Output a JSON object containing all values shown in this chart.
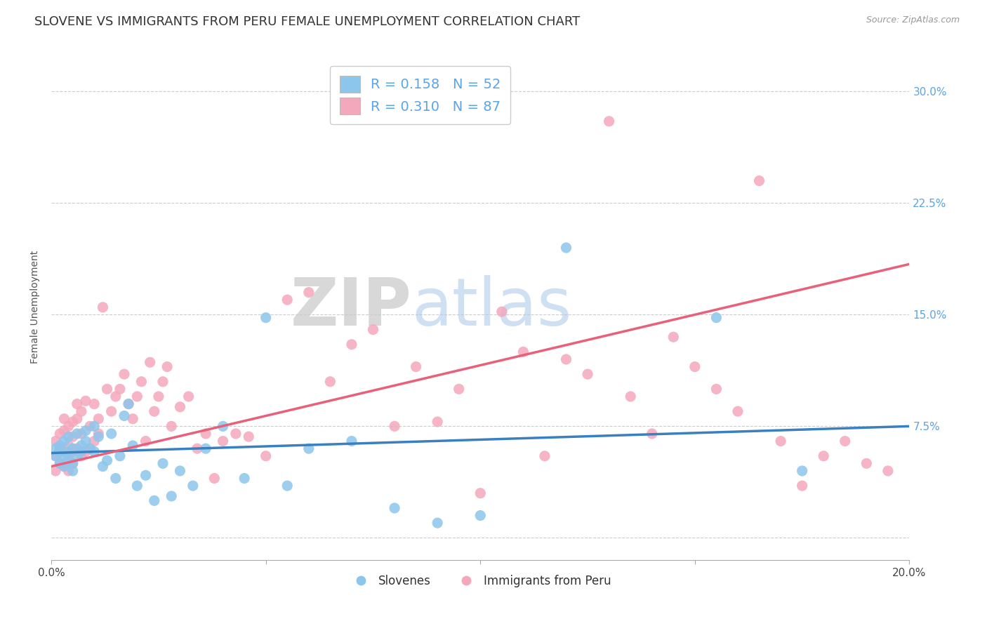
{
  "title": "SLOVENE VS IMMIGRANTS FROM PERU FEMALE UNEMPLOYMENT CORRELATION CHART",
  "source": "Source: ZipAtlas.com",
  "ylabel": "Female Unemployment",
  "yticks": [
    0.0,
    0.075,
    0.15,
    0.225,
    0.3
  ],
  "ytick_labels": [
    "",
    "7.5%",
    "15.0%",
    "22.5%",
    "30.0%"
  ],
  "xlim": [
    0.0,
    0.2
  ],
  "ylim": [
    -0.015,
    0.325
  ],
  "slovene_R": 0.158,
  "slovene_N": 52,
  "peru_R": 0.31,
  "peru_N": 87,
  "slovene_color": "#8DC6EC",
  "peru_color": "#F4A8BC",
  "slovene_line_color": "#3A80C0",
  "peru_line_color": "#E8607A",
  "watermark_zip": "ZIP",
  "watermark_atlas": "atlas",
  "background_color": "#FFFFFF",
  "grid_color": "#CCCCCC",
  "title_fontsize": 13,
  "axis_label_fontsize": 10,
  "tick_label_fontsize": 11,
  "legend_fontsize": 14,
  "slovene_x": [
    0.001,
    0.001,
    0.002,
    0.002,
    0.002,
    0.003,
    0.003,
    0.003,
    0.004,
    0.004,
    0.004,
    0.005,
    0.005,
    0.005,
    0.006,
    0.006,
    0.007,
    0.007,
    0.008,
    0.008,
    0.009,
    0.01,
    0.01,
    0.011,
    0.012,
    0.013,
    0.014,
    0.015,
    0.016,
    0.017,
    0.018,
    0.019,
    0.02,
    0.022,
    0.024,
    0.026,
    0.028,
    0.03,
    0.033,
    0.036,
    0.04,
    0.045,
    0.05,
    0.055,
    0.06,
    0.07,
    0.08,
    0.09,
    0.1,
    0.12,
    0.155,
    0.175
  ],
  "slovene_y": [
    0.06,
    0.055,
    0.058,
    0.062,
    0.05,
    0.048,
    0.055,
    0.065,
    0.052,
    0.058,
    0.068,
    0.045,
    0.06,
    0.05,
    0.07,
    0.055,
    0.062,
    0.058,
    0.065,
    0.072,
    0.06,
    0.058,
    0.075,
    0.068,
    0.048,
    0.052,
    0.07,
    0.04,
    0.055,
    0.082,
    0.09,
    0.062,
    0.035,
    0.042,
    0.025,
    0.05,
    0.028,
    0.045,
    0.035,
    0.06,
    0.075,
    0.04,
    0.148,
    0.035,
    0.06,
    0.065,
    0.02,
    0.01,
    0.015,
    0.195,
    0.148,
    0.045
  ],
  "peru_x": [
    0.001,
    0.001,
    0.001,
    0.002,
    0.002,
    0.002,
    0.003,
    0.003,
    0.003,
    0.003,
    0.004,
    0.004,
    0.004,
    0.004,
    0.005,
    0.005,
    0.005,
    0.005,
    0.006,
    0.006,
    0.006,
    0.007,
    0.007,
    0.007,
    0.008,
    0.008,
    0.009,
    0.009,
    0.01,
    0.01,
    0.011,
    0.011,
    0.012,
    0.013,
    0.014,
    0.015,
    0.016,
    0.017,
    0.018,
    0.019,
    0.02,
    0.021,
    0.022,
    0.023,
    0.024,
    0.025,
    0.026,
    0.027,
    0.028,
    0.03,
    0.032,
    0.034,
    0.036,
    0.038,
    0.04,
    0.043,
    0.046,
    0.05,
    0.055,
    0.06,
    0.065,
    0.07,
    0.075,
    0.08,
    0.085,
    0.09,
    0.095,
    0.1,
    0.105,
    0.11,
    0.115,
    0.12,
    0.125,
    0.13,
    0.135,
    0.14,
    0.145,
    0.15,
    0.155,
    0.16,
    0.165,
    0.17,
    0.175,
    0.18,
    0.185,
    0.19,
    0.195
  ],
  "peru_y": [
    0.055,
    0.065,
    0.045,
    0.06,
    0.07,
    0.05,
    0.058,
    0.072,
    0.048,
    0.08,
    0.055,
    0.062,
    0.075,
    0.045,
    0.058,
    0.068,
    0.078,
    0.05,
    0.06,
    0.08,
    0.09,
    0.055,
    0.07,
    0.085,
    0.058,
    0.092,
    0.06,
    0.075,
    0.065,
    0.09,
    0.07,
    0.08,
    0.155,
    0.1,
    0.085,
    0.095,
    0.1,
    0.11,
    0.09,
    0.08,
    0.095,
    0.105,
    0.065,
    0.118,
    0.085,
    0.095,
    0.105,
    0.115,
    0.075,
    0.088,
    0.095,
    0.06,
    0.07,
    0.04,
    0.065,
    0.07,
    0.068,
    0.055,
    0.16,
    0.165,
    0.105,
    0.13,
    0.14,
    0.075,
    0.115,
    0.078,
    0.1,
    0.03,
    0.152,
    0.125,
    0.055,
    0.12,
    0.11,
    0.28,
    0.095,
    0.07,
    0.135,
    0.115,
    0.1,
    0.085,
    0.24,
    0.065,
    0.035,
    0.055,
    0.065,
    0.05,
    0.045
  ],
  "slovene_line_x": [
    0.0,
    0.2
  ],
  "slovene_line_y_intercept": 0.057,
  "slovene_line_slope": 0.09,
  "peru_line_x": [
    0.0,
    0.2
  ],
  "peru_line_y_intercept": 0.048,
  "peru_line_slope": 0.68
}
